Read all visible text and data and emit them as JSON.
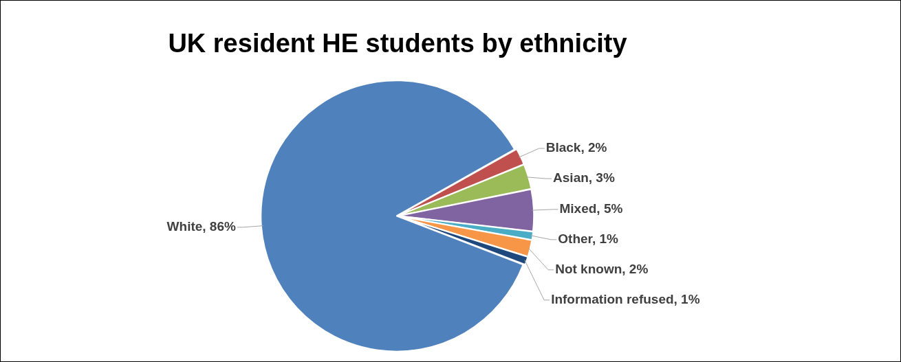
{
  "chart_data": {
    "type": "pie",
    "title": "UK resident HE students by ethnicity",
    "categories": [
      "White",
      "Black",
      "Asian",
      "Mixed",
      "Other",
      "Not known",
      "Information refused"
    ],
    "values": [
      86,
      2,
      3,
      5,
      1,
      2,
      1
    ],
    "colors": [
      "#4f81bd",
      "#c0504d",
      "#9bbb59",
      "#8064a2",
      "#4bacc6",
      "#f79646",
      "#1f497d"
    ],
    "value_labels": [
      "86%",
      "2%",
      "3%",
      "5%",
      "1%",
      "2%",
      "1%"
    ],
    "legend": false
  }
}
